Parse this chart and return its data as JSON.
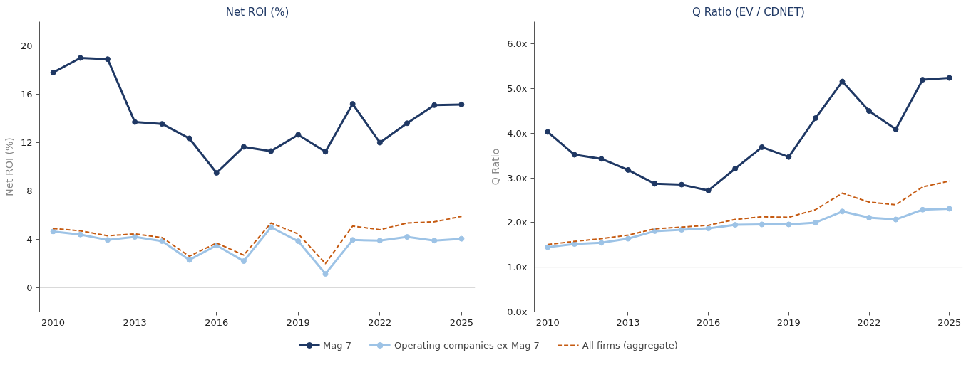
{
  "chart_data": [
    {
      "type": "line",
      "title": "Net ROI (%)",
      "ylabel": "Net ROI (%)",
      "x": [
        2010,
        2011,
        2012,
        2013,
        2014,
        2015,
        2016,
        2017,
        2018,
        2019,
        2020,
        2021,
        2022,
        2023,
        2024,
        2025
      ],
      "series": [
        {
          "name": "Mag 7",
          "color": "#1f3864",
          "marker": "circle",
          "line_style": "solid",
          "values": [
            17.8,
            19.0,
            18.9,
            13.7,
            13.55,
            12.35,
            9.5,
            11.65,
            11.3,
            12.65,
            11.25,
            15.2,
            12.0,
            13.6,
            15.1,
            15.15
          ]
        },
        {
          "name": "Operating companies ex-Mag 7",
          "color": "#9dc3e6",
          "marker": "circle",
          "line_style": "solid",
          "values": [
            4.65,
            4.4,
            3.95,
            4.2,
            3.85,
            2.3,
            3.5,
            2.2,
            5.0,
            3.85,
            1.15,
            3.95,
            3.9,
            4.2,
            3.9,
            4.05
          ]
        },
        {
          "name": "All firms (aggregate)",
          "color": "#c55a11",
          "marker": "none",
          "line_style": "dashed",
          "values": [
            4.9,
            4.7,
            4.3,
            4.45,
            4.15,
            2.6,
            3.7,
            2.7,
            5.35,
            4.45,
            2.0,
            5.1,
            4.8,
            5.35,
            5.45,
            5.9
          ]
        }
      ],
      "xlim": [
        2009.5,
        2025.5
      ],
      "ylim": [
        -2,
        22
      ],
      "xticks": [
        2010,
        2013,
        2016,
        2019,
        2022,
        2025
      ],
      "yticks": [
        0,
        4,
        8,
        12,
        16,
        20
      ],
      "ref_lines": [
        {
          "axis": "y",
          "value": 0,
          "color": "#d9d9d9"
        }
      ],
      "grid": false,
      "legend": "bottom"
    },
    {
      "type": "line",
      "title": "Q Ratio (EV / CDNET)",
      "ylabel": "Q Ratio",
      "x": [
        2010,
        2011,
        2012,
        2013,
        2014,
        2015,
        2016,
        2017,
        2018,
        2019,
        2020,
        2021,
        2022,
        2023,
        2024,
        2025
      ],
      "series": [
        {
          "color": "#1f3864",
          "marker": "circle",
          "line_style": "solid",
          "values": [
            4.03,
            3.52,
            3.43,
            3.18,
            2.87,
            2.85,
            2.72,
            3.21,
            3.69,
            3.47,
            4.34,
            5.16,
            4.5,
            4.09,
            5.2,
            5.24
          ]
        },
        {
          "color": "#9dc3e6",
          "marker": "circle",
          "line_style": "solid",
          "values": [
            1.45,
            1.52,
            1.55,
            1.64,
            1.81,
            1.84,
            1.87,
            1.95,
            1.96,
            1.96,
            2.0,
            2.25,
            2.11,
            2.07,
            2.29,
            2.31
          ]
        },
        {
          "color": "#c55a11",
          "marker": "none",
          "line_style": "dashed",
          "values": [
            1.51,
            1.58,
            1.64,
            1.72,
            1.86,
            1.9,
            1.94,
            2.07,
            2.13,
            2.12,
            2.29,
            2.66,
            2.46,
            2.4,
            2.8,
            2.93
          ]
        }
      ],
      "xlim": [
        2009.5,
        2025.5
      ],
      "ylim": [
        0,
        6.5
      ],
      "xticks": [
        2010,
        2013,
        2016,
        2019,
        2022,
        2025
      ],
      "yticks": [
        {
          "value": 0,
          "label": "0.0x"
        },
        {
          "value": 1,
          "label": "1.0x"
        },
        {
          "value": 2,
          "label": "2.0x"
        },
        {
          "value": 3,
          "label": "3.0x"
        },
        {
          "value": 4,
          "label": "4.0x"
        },
        {
          "value": 5,
          "label": "5.0x"
        },
        {
          "value": 6,
          "label": "6.0x"
        }
      ],
      "ref_lines": [
        {
          "axis": "y",
          "value": 1,
          "color": "#d9d9d9"
        }
      ],
      "grid": false
    }
  ]
}
